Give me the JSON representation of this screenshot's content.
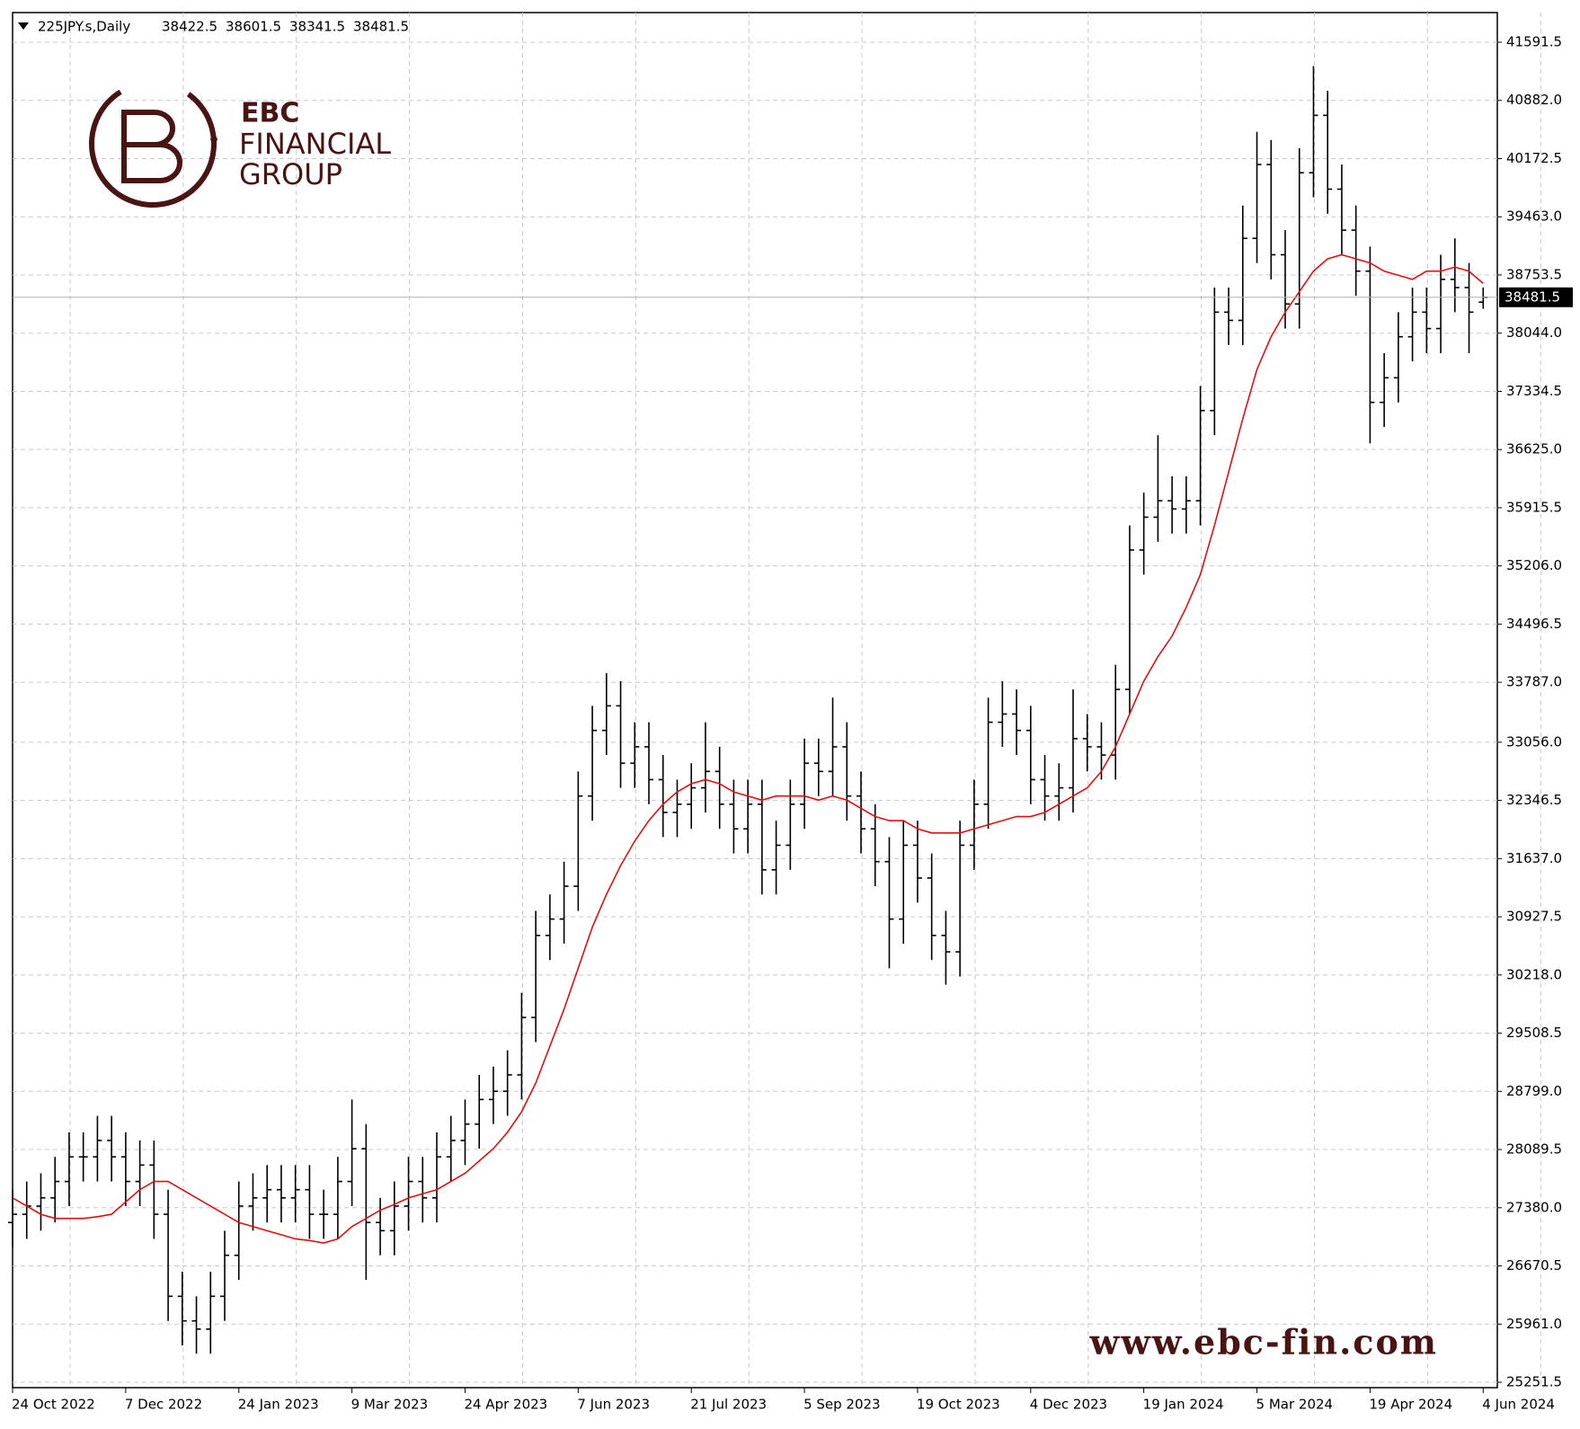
{
  "chart_data": {
    "type": "ohlc",
    "title": "225JPY.s,Daily",
    "open": [
      27200,
      27300,
      27400,
      27500,
      27700,
      28000,
      28000,
      28200,
      28000,
      27700,
      27900,
      27300,
      26300,
      26000,
      25900,
      26300,
      26800,
      27400,
      27500,
      27600,
      27500,
      27600,
      27300,
      27300,
      27700,
      28100,
      27200,
      27100,
      27400,
      27700,
      27500,
      28000,
      28200,
      28400,
      28700,
      28800,
      29000,
      29700,
      30700,
      30900,
      31300,
      32400,
      33200,
      33500,
      32800,
      33000,
      32600,
      32200,
      32300,
      32500,
      32700,
      32300,
      32000,
      32300,
      31500,
      31800,
      32300,
      32800,
      32700,
      33000,
      32400,
      32000,
      31600,
      30900,
      31800,
      31400,
      30700,
      30500,
      31800,
      32300,
      33300,
      33400,
      33200,
      32600,
      32400,
      32500,
      33100,
      33000,
      32900,
      33700,
      35400,
      35800,
      36000,
      35900,
      36000,
      37100,
      38300,
      38200,
      39200,
      40100,
      39000,
      38400,
      40000,
      40700,
      39800,
      39300,
      38800,
      37200,
      37500,
      38000,
      38300,
      38100,
      38700,
      38600,
      38422.5
    ],
    "high": [
      27600,
      27700,
      27800,
      28000,
      28300,
      28300,
      28500,
      28500,
      28300,
      28200,
      28200,
      27600,
      26600,
      26300,
      26600,
      27100,
      27700,
      27800,
      27900,
      27900,
      27900,
      27900,
      27600,
      28000,
      28700,
      28400,
      27500,
      27700,
      28000,
      28000,
      28300,
      28500,
      28700,
      29000,
      29100,
      29300,
      30000,
      31000,
      31200,
      31600,
      32700,
      33500,
      33900,
      33800,
      33300,
      33300,
      32900,
      32600,
      32800,
      33300,
      33000,
      32600,
      32600,
      32600,
      32100,
      32600,
      33100,
      33100,
      33600,
      33300,
      32700,
      32300,
      31900,
      32100,
      32100,
      31700,
      31000,
      32100,
      32600,
      33600,
      33800,
      33700,
      33500,
      32900,
      32800,
      33700,
      33400,
      33300,
      34000,
      35700,
      36100,
      36800,
      36300,
      36300,
      37400,
      38600,
      38600,
      39600,
      40500,
      40400,
      39300,
      40300,
      41300,
      41000,
      40100,
      39600,
      39100,
      37800,
      38300,
      38600,
      38600,
      39000,
      39200,
      38900,
      38601.5
    ],
    "low": [
      26900,
      27000,
      27100,
      27200,
      27400,
      27700,
      27700,
      27700,
      27400,
      27400,
      27000,
      26000,
      25700,
      25600,
      25600,
      26000,
      26500,
      27100,
      27200,
      27200,
      27200,
      27000,
      27000,
      27000,
      27400,
      26500,
      26800,
      26800,
      27100,
      27200,
      27200,
      27700,
      27900,
      28100,
      28400,
      28500,
      28700,
      29400,
      30400,
      30600,
      31000,
      32100,
      32900,
      32500,
      32500,
      32300,
      31900,
      31900,
      32000,
      32200,
      32000,
      31700,
      31700,
      31200,
      31200,
      31500,
      32000,
      32400,
      32400,
      32100,
      31700,
      31300,
      30300,
      30600,
      31100,
      30400,
      30100,
      30200,
      31500,
      32000,
      33000,
      32900,
      32300,
      32100,
      32100,
      32200,
      32700,
      32600,
      32600,
      33400,
      35100,
      35500,
      35600,
      35600,
      35700,
      36800,
      37900,
      37900,
      38900,
      38700,
      38100,
      38100,
      39700,
      39500,
      39000,
      38500,
      36700,
      36900,
      37200,
      37700,
      37800,
      37800,
      38300,
      37800,
      38341.5
    ],
    "close": [
      27300,
      27400,
      27500,
      27700,
      28000,
      28000,
      28200,
      28000,
      27700,
      27900,
      27300,
      26300,
      26000,
      25900,
      26300,
      26800,
      27400,
      27500,
      27600,
      27500,
      27600,
      27300,
      27300,
      27700,
      28100,
      27200,
      27100,
      27400,
      27700,
      27500,
      28000,
      28200,
      28400,
      28700,
      28800,
      29000,
      29700,
      30700,
      30900,
      31300,
      32400,
      33200,
      33500,
      32800,
      33000,
      32600,
      32200,
      32300,
      32500,
      32700,
      32300,
      32000,
      32300,
      31500,
      31800,
      32300,
      32800,
      32700,
      33000,
      32400,
      32000,
      31600,
      30900,
      31800,
      31400,
      30700,
      30500,
      31800,
      32300,
      33300,
      33400,
      33200,
      32600,
      32400,
      32500,
      33100,
      33000,
      32900,
      33700,
      35400,
      35800,
      36000,
      35900,
      36000,
      37100,
      38300,
      38200,
      39200,
      40100,
      39000,
      38400,
      40000,
      40700,
      39800,
      39300,
      38800,
      37200,
      37500,
      38000,
      38300,
      38100,
      38700,
      38600,
      38300,
      38481.5
    ],
    "color": "#000000",
    "ma": {
      "color": "#e01010",
      "values": [
        27500,
        27400,
        27300,
        27250,
        27250,
        27250,
        27270,
        27300,
        27450,
        27600,
        27700,
        27700,
        27600,
        27500,
        27400,
        27300,
        27200,
        27150,
        27100,
        27050,
        27000,
        26980,
        26950,
        27000,
        27150,
        27250,
        27350,
        27420,
        27500,
        27550,
        27600,
        27700,
        27800,
        27950,
        28100,
        28300,
        28550,
        28900,
        29350,
        29800,
        30300,
        30800,
        31200,
        31550,
        31850,
        32100,
        32300,
        32450,
        32550,
        32600,
        32550,
        32450,
        32400,
        32350,
        32400,
        32400,
        32400,
        32350,
        32400,
        32350,
        32250,
        32150,
        32100,
        32100,
        32000,
        31950,
        31950,
        31950,
        32000,
        32050,
        32100,
        32150,
        32150,
        32200,
        32300,
        32400,
        32500,
        32700,
        33000,
        33400,
        33800,
        34100,
        34350,
        34700,
        35100,
        35700,
        36350,
        37000,
        37600,
        38000,
        38300,
        38550,
        38800,
        38950,
        39000,
        38950,
        38900,
        38800,
        38750,
        38700,
        38800,
        38800,
        38850,
        38800,
        38650
      ]
    },
    "xlim": [
      0,
      105
    ],
    "xticks": [
      {
        "value": 0,
        "label": "24 Oct 2022"
      },
      {
        "value": 8,
        "label": "7 Dec 2022"
      },
      {
        "value": 16,
        "label": "24 Jan 2023"
      },
      {
        "value": 24,
        "label": "9 Mar 2023"
      },
      {
        "value": 32,
        "label": "24 Apr 2023"
      },
      {
        "value": 40,
        "label": "7 Jun 2023"
      },
      {
        "value": 48,
        "label": "21 Jul 2023"
      },
      {
        "value": 56,
        "label": "5 Sep 2023"
      },
      {
        "value": 64,
        "label": "19 Oct 2023"
      },
      {
        "value": 72,
        "label": "4 Dec 2023"
      },
      {
        "value": 80,
        "label": "19 Jan 2024"
      },
      {
        "value": 88,
        "label": "5 Mar 2024"
      },
      {
        "value": 96,
        "label": "19 Apr 2024"
      },
      {
        "value": 104,
        "label": "4 Jun 2024"
      }
    ],
    "ylim": [
      25186,
      41953
    ],
    "yticks": [
      41591.5,
      {
        "value": 40882,
        "label": "40882.0"
      },
      40172.5,
      {
        "value": 39463,
        "label": "39463.0"
      },
      38753.5,
      {
        "value": 38044,
        "label": "38044.0"
      },
      37334.5,
      {
        "value": 36625,
        "label": "36625.0"
      },
      35915.5,
      {
        "value": 35206,
        "label": "35206.0"
      },
      34496.5,
      {
        "value": 33787,
        "label": "33787.0"
      },
      {
        "value": 33056,
        "label": "33056.0"
      },
      32346.5,
      {
        "value": 31637,
        "label": "31637.0"
      },
      30927.5,
      {
        "value": 30218,
        "label": "30218.0"
      },
      29508.5,
      {
        "value": 28799,
        "label": "28799.0"
      },
      28089.5,
      {
        "value": 27380,
        "label": "27380.0"
      },
      26670.5,
      {
        "value": 25961,
        "label": "25961.0"
      },
      25251.5
    ],
    "grid": true
  },
  "logo": {
    "brand": "EBC",
    "line1": "FINANCIAL",
    "line2": "GROUP"
  },
  "watermark": "www.ebc-fin.com"
}
